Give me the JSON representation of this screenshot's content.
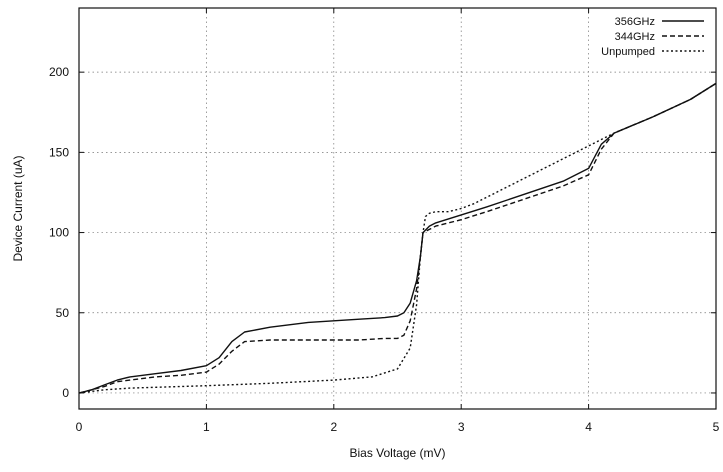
{
  "chart_data": {
    "type": "line",
    "title": "",
    "xlabel": "Bias Voltage (mV)",
    "ylabel": "Device Current (uA)",
    "xlim": [
      0,
      5
    ],
    "ylim": [
      -10,
      240
    ],
    "xticks": [
      0,
      1,
      2,
      3,
      4,
      5
    ],
    "yticks": [
      0,
      50,
      100,
      150,
      200
    ],
    "grid": true,
    "legend_position": "top-right",
    "series": [
      {
        "name": "356GHz",
        "line_style": "solid",
        "x": [
          0,
          0.1,
          0.2,
          0.3,
          0.4,
          0.6,
          0.8,
          1.0,
          1.1,
          1.2,
          1.3,
          1.5,
          1.8,
          2.0,
          2.2,
          2.4,
          2.5,
          2.55,
          2.6,
          2.65,
          2.68,
          2.7,
          2.75,
          2.8,
          3.0,
          3.2,
          3.5,
          3.8,
          4.0,
          4.1,
          4.2,
          4.5,
          4.8,
          5.0
        ],
        "y": [
          0,
          2,
          5,
          8,
          10,
          12,
          14,
          17,
          22,
          32,
          38,
          41,
          44,
          45,
          46,
          47,
          48,
          50,
          56,
          70,
          85,
          100,
          104,
          106,
          111,
          116,
          124,
          132,
          140,
          155,
          162,
          172,
          183,
          193
        ]
      },
      {
        "name": "344GHz",
        "line_style": "dashed",
        "x": [
          0,
          0.1,
          0.2,
          0.3,
          0.4,
          0.6,
          0.8,
          1.0,
          1.1,
          1.2,
          1.3,
          1.5,
          1.8,
          2.0,
          2.2,
          2.4,
          2.5,
          2.55,
          2.6,
          2.65,
          2.68,
          2.7,
          2.75,
          2.8,
          3.0,
          3.2,
          3.5,
          3.8,
          4.0,
          4.1,
          4.2,
          4.5,
          4.8,
          5.0
        ],
        "y": [
          0,
          2,
          4,
          7,
          8,
          10,
          11,
          13,
          18,
          26,
          32,
          33,
          33,
          33,
          33,
          34,
          34,
          36,
          45,
          65,
          85,
          100,
          102,
          104,
          108,
          113,
          121,
          129,
          136,
          152,
          162,
          172,
          183,
          193
        ]
      },
      {
        "name": "Unpumped",
        "line_style": "dotted",
        "x": [
          0,
          0.1,
          0.2,
          0.4,
          0.6,
          0.8,
          1.0,
          1.5,
          2.0,
          2.3,
          2.5,
          2.6,
          2.65,
          2.68,
          2.7,
          2.72,
          2.75,
          2.8,
          2.9,
          3.0,
          3.1,
          3.5,
          4.0,
          4.1,
          4.2,
          4.5,
          4.8,
          5.0
        ],
        "y": [
          0,
          1,
          2,
          3,
          3.5,
          4,
          4.5,
          6,
          8,
          10,
          15,
          28,
          55,
          85,
          100,
          110,
          112,
          113,
          113,
          115,
          118,
          134,
          154,
          158,
          162,
          172,
          183,
          193
        ]
      }
    ]
  }
}
